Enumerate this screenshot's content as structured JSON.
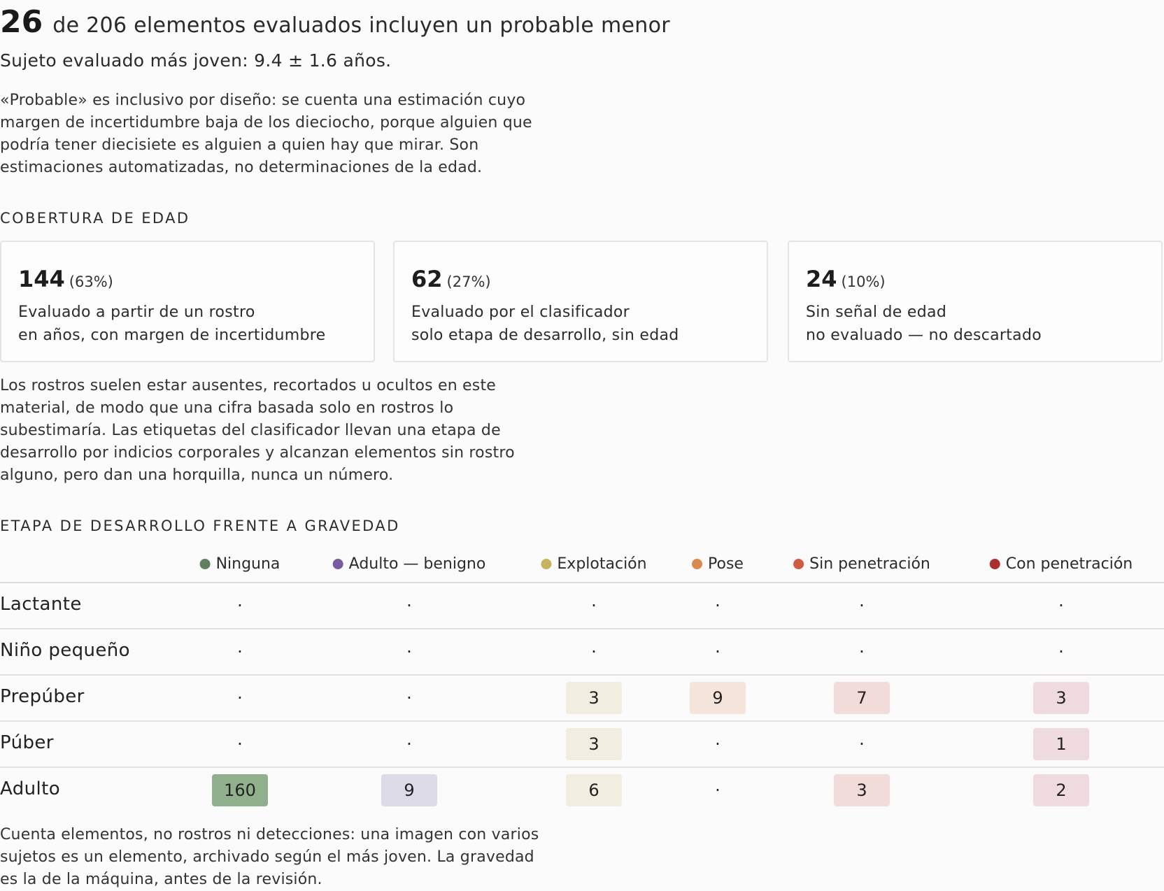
{
  "headline": {
    "count": "26",
    "text": "de 206 elementos evaluados incluyen un probable menor"
  },
  "youngest": "Sujeto evaluado más joven: 9.4 ± 1.6 años.",
  "intro": "«Probable» es inclusivo por diseño: se cuenta una estimación cuyo margen de incertidumbre baja de los dieciocho, porque alguien que podría tener diecisiete es alguien a quien hay que mirar. Son estimaciones automatizadas, no determinaciones de la edad.",
  "coverage": {
    "title": "COBERTURA DE EDAD",
    "cards": [
      {
        "num": "144",
        "pct": "(63%)",
        "line1": "Evaluado a partir de un rostro",
        "line2": "en años, con margen de incertidumbre"
      },
      {
        "num": "62",
        "pct": "(27%)",
        "line1": "Evaluado por el clasificador",
        "line2": "solo etapa de desarrollo, sin edad"
      },
      {
        "num": "24",
        "pct": "(10%)",
        "line1": "Sin señal de edad",
        "line2": "no evaluado — no descartado"
      }
    ],
    "note": "Los rostros suelen estar ausentes, recortados u ocultos en este material, de modo que una cifra basada solo en rostros lo subestimaría. Las etiquetas del clasificador llevan una etapa de desarrollo por indicios corporales y alcanzan elementos sin rostro alguno, pero dan una horquilla, nunca un número."
  },
  "matrix": {
    "title": "ETAPA DE DESARROLLO FRENTE A GRAVEDAD",
    "columns": [
      {
        "label": "Ninguna",
        "color": "#5f7f5f",
        "cell_color": "#8faf8d"
      },
      {
        "label": "Adulto — benigno",
        "color": "#7a5aa0",
        "cell_color": "#dedbe8"
      },
      {
        "label": "Explotación",
        "color": "#c9b25e",
        "cell_color": "#f1ede0"
      },
      {
        "label": "Pose",
        "color": "#d98a52",
        "cell_color": "#f5e4da"
      },
      {
        "label": "Sin penetración",
        "color": "#d15a45",
        "cell_color": "#f2dcda"
      },
      {
        "label": "Con penetración",
        "color": "#a8302e",
        "cell_color": "#efdadd"
      }
    ],
    "empty_symbol": "·",
    "rows": [
      {
        "label": "Lactante",
        "values": [
          "·",
          "·",
          "·",
          "·",
          "·",
          "·"
        ]
      },
      {
        "label": "Niño pequeño",
        "values": [
          "·",
          "·",
          "·",
          "·",
          "·",
          "·"
        ]
      },
      {
        "label": "Prepúber",
        "values": [
          "·",
          "·",
          "3",
          "9",
          "7",
          "3"
        ]
      },
      {
        "label": "Púber",
        "values": [
          "·",
          "·",
          "3",
          "·",
          "·",
          "1"
        ]
      },
      {
        "label": "Adulto",
        "values": [
          "160",
          "9",
          "6",
          "·",
          "3",
          "2"
        ]
      }
    ],
    "note": "Cuenta elementos, no rostros ni detecciones: una imagen con varios sujetos es un elemento, archivado según el más joven. La gravedad es la de la máquina, antes de la revisión."
  }
}
